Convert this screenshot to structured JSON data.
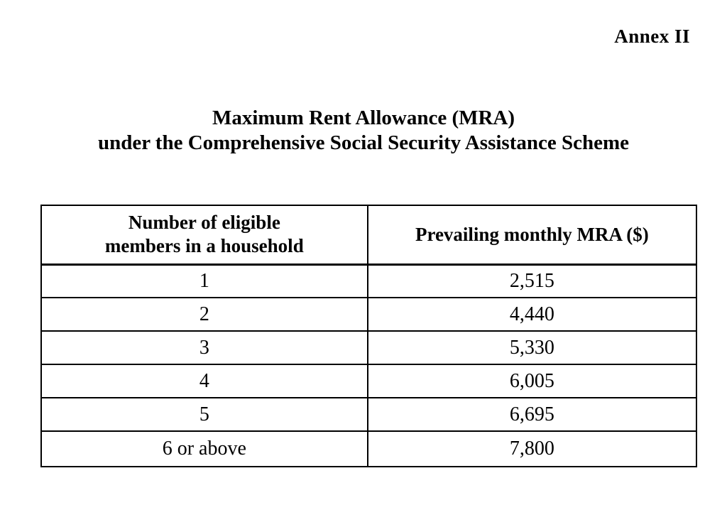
{
  "annex_label": "Annex II",
  "title": {
    "line1": "Maximum Rent Allowance (MRA)",
    "line2": "under the Comprehensive Social Security Assistance Scheme"
  },
  "table": {
    "headers": {
      "members": {
        "line1": "Number of eligible",
        "line2": "members in a household"
      },
      "mra": {
        "label": "Prevailing monthly MRA ($)"
      }
    },
    "rows": [
      {
        "members": "1",
        "mra": "2,515"
      },
      {
        "members": "2",
        "mra": "4,440"
      },
      {
        "members": "3",
        "mra": "5,330"
      },
      {
        "members": "4",
        "mra": "6,005"
      },
      {
        "members": "5",
        "mra": "6,695"
      },
      {
        "members": "6 or above",
        "mra": "7,800"
      }
    ]
  },
  "colors": {
    "text": "#000000",
    "border": "#000000",
    "background": "#ffffff"
  }
}
